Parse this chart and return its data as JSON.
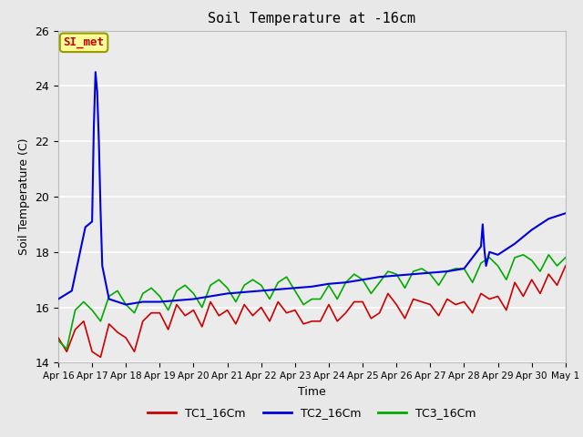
{
  "title": "Soil Temperature at -16cm",
  "xlabel": "Time",
  "ylabel": "Soil Temperature (C)",
  "ylim": [
    14,
    26
  ],
  "background_color": "#e8e8e8",
  "plot_bg_color": "#ebebeb",
  "annotation_text": "SI_met",
  "annotation_box_color": "#ffff99",
  "annotation_text_color": "#cc0000",
  "x_tick_labels": [
    "Apr 16",
    "Apr 17",
    "Apr 18",
    "Apr 19",
    "Apr 20",
    "Apr 21",
    "Apr 22",
    "Apr 23",
    "Apr 24",
    "Apr 25",
    "Apr 26",
    "Apr 27",
    "Apr 28",
    "Apr 29",
    "Apr 30",
    "May 1"
  ],
  "tc1_color": "#cc0000",
  "tc2_color": "#0000dd",
  "tc3_color": "#00aa00",
  "legend_labels": [
    "TC1_16Cm",
    "TC2_16Cm",
    "TC3_16Cm"
  ],
  "tc1_x": [
    0.0,
    0.25,
    0.5,
    0.75,
    1.0,
    1.25,
    1.5,
    1.75,
    2.0,
    2.25,
    2.5,
    2.75,
    3.0,
    3.25,
    3.5,
    3.75,
    4.0,
    4.25,
    4.5,
    4.75,
    5.0,
    5.25,
    5.5,
    5.75,
    6.0,
    6.25,
    6.5,
    6.75,
    7.0,
    7.25,
    7.5,
    7.75,
    8.0,
    8.25,
    8.5,
    8.75,
    9.0,
    9.25,
    9.5,
    9.75,
    10.0,
    10.25,
    10.5,
    10.75,
    11.0,
    11.25,
    11.5,
    11.75,
    12.0,
    12.25,
    12.5,
    12.75,
    13.0,
    13.25,
    13.5,
    13.75,
    14.0,
    14.25,
    14.5,
    14.75,
    15.0
  ],
  "tc1_y": [
    14.9,
    14.4,
    15.2,
    15.5,
    14.4,
    14.2,
    15.4,
    15.1,
    14.9,
    14.4,
    15.5,
    15.8,
    15.8,
    15.2,
    16.1,
    15.7,
    15.9,
    15.3,
    16.2,
    15.7,
    15.9,
    15.4,
    16.1,
    15.7,
    16.0,
    15.5,
    16.2,
    15.8,
    15.9,
    15.4,
    15.5,
    15.5,
    16.1,
    15.5,
    15.8,
    16.2,
    16.2,
    15.6,
    15.8,
    16.5,
    16.1,
    15.6,
    16.3,
    16.2,
    16.1,
    15.7,
    16.3,
    16.1,
    16.2,
    15.8,
    16.5,
    16.3,
    16.4,
    15.9,
    16.9,
    16.4,
    17.0,
    16.5,
    17.2,
    16.8,
    17.5
  ],
  "tc2_x": [
    0.0,
    0.4,
    0.8,
    1.0,
    1.05,
    1.1,
    1.15,
    1.2,
    1.25,
    1.3,
    1.5,
    2.0,
    2.5,
    3.0,
    3.5,
    4.0,
    4.5,
    5.0,
    5.5,
    6.0,
    6.5,
    7.0,
    7.5,
    8.0,
    8.5,
    9.0,
    9.5,
    10.0,
    10.5,
    11.0,
    11.5,
    12.0,
    12.5,
    12.55,
    12.6,
    12.65,
    12.75,
    13.0,
    13.5,
    14.0,
    14.5,
    15.0
  ],
  "tc2_y": [
    16.3,
    16.6,
    18.9,
    19.1,
    22.5,
    24.5,
    23.8,
    22.0,
    19.5,
    17.5,
    16.3,
    16.1,
    16.2,
    16.2,
    16.25,
    16.3,
    16.4,
    16.5,
    16.55,
    16.6,
    16.65,
    16.7,
    16.75,
    16.85,
    16.9,
    17.0,
    17.1,
    17.15,
    17.2,
    17.25,
    17.3,
    17.4,
    18.2,
    19.0,
    18.1,
    17.5,
    18.0,
    17.9,
    18.3,
    18.8,
    19.2,
    19.4
  ],
  "tc3_x": [
    0.0,
    0.25,
    0.5,
    0.75,
    1.0,
    1.25,
    1.5,
    1.75,
    2.0,
    2.25,
    2.5,
    2.75,
    3.0,
    3.25,
    3.5,
    3.75,
    4.0,
    4.25,
    4.5,
    4.75,
    5.0,
    5.25,
    5.5,
    5.75,
    6.0,
    6.25,
    6.5,
    6.75,
    7.0,
    7.25,
    7.5,
    7.75,
    8.0,
    8.25,
    8.5,
    8.75,
    9.0,
    9.25,
    9.5,
    9.75,
    10.0,
    10.25,
    10.5,
    10.75,
    11.0,
    11.25,
    11.5,
    11.75,
    12.0,
    12.25,
    12.5,
    12.75,
    13.0,
    13.25,
    13.5,
    13.75,
    14.0,
    14.25,
    14.5,
    14.75,
    15.0
  ],
  "tc3_y": [
    14.8,
    14.5,
    15.9,
    16.2,
    15.9,
    15.5,
    16.4,
    16.6,
    16.1,
    15.8,
    16.5,
    16.7,
    16.4,
    15.9,
    16.6,
    16.8,
    16.5,
    16.0,
    16.8,
    17.0,
    16.7,
    16.2,
    16.8,
    17.0,
    16.8,
    16.3,
    16.9,
    17.1,
    16.6,
    16.1,
    16.3,
    16.3,
    16.8,
    16.3,
    16.9,
    17.2,
    17.0,
    16.5,
    16.9,
    17.3,
    17.2,
    16.7,
    17.3,
    17.4,
    17.2,
    16.8,
    17.3,
    17.4,
    17.4,
    16.9,
    17.6,
    17.8,
    17.5,
    17.0,
    17.8,
    17.9,
    17.7,
    17.3,
    17.9,
    17.5,
    17.8
  ]
}
